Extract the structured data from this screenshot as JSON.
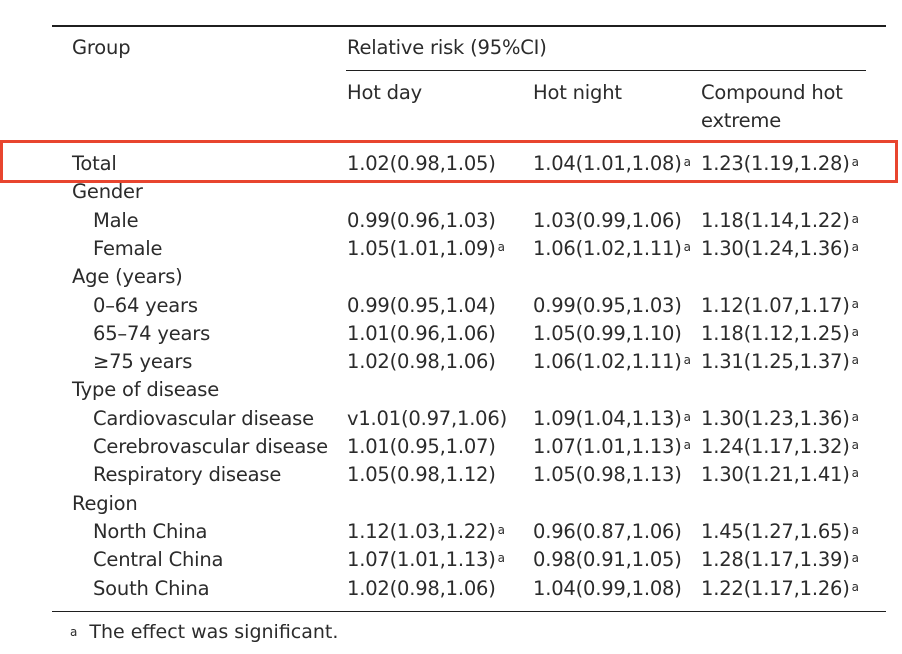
{
  "header": {
    "group": "Group",
    "relative_risk": "Relative risk (95%CI)",
    "columns": [
      "Hot day",
      "Hot night",
      "Compound hot",
      "extreme"
    ]
  },
  "rows": [
    {
      "label": "Total",
      "indent": false,
      "hot_day": "1.02(0.98,1.05)",
      "hot_day_sig": "",
      "hot_night": "1.04(1.01,1.08)",
      "hot_night_sig": "a",
      "compound": "1.23(1.19,1.28)",
      "compound_sig": "a"
    },
    {
      "label": "Gender",
      "indent": false
    },
    {
      "label": "Male",
      "indent": true,
      "hot_day": "0.99(0.96,1.03)",
      "hot_day_sig": "",
      "hot_night": "1.03(0.99,1.06)",
      "hot_night_sig": "",
      "compound": "1.18(1.14,1.22)",
      "compound_sig": "a"
    },
    {
      "label": "Female",
      "indent": true,
      "hot_day": "1.05(1.01,1.09)",
      "hot_day_sig": "a",
      "hot_night": "1.06(1.02,1.11)",
      "hot_night_sig": "a",
      "compound": "1.30(1.24,1.36)",
      "compound_sig": "a"
    },
    {
      "label": "Age (years)",
      "indent": false
    },
    {
      "label": "0–64 years",
      "indent": true,
      "hot_day": "0.99(0.95,1.04)",
      "hot_day_sig": "",
      "hot_night": "0.99(0.95,1.03)",
      "hot_night_sig": "",
      "compound": "1.12(1.07,1.17)",
      "compound_sig": "a"
    },
    {
      "label": "65–74 years",
      "indent": true,
      "hot_day": "1.01(0.96,1.06)",
      "hot_day_sig": "",
      "hot_night": "1.05(0.99,1.10)",
      "hot_night_sig": "",
      "compound": "1.18(1.12,1.25)",
      "compound_sig": "a"
    },
    {
      "label": "≥75 years",
      "indent": true,
      "hot_day": "1.02(0.98,1.06)",
      "hot_day_sig": "",
      "hot_night": "1.06(1.02,1.11)",
      "hot_night_sig": "a",
      "compound": "1.31(1.25,1.37)",
      "compound_sig": "a"
    },
    {
      "label": "Type of disease",
      "indent": false
    },
    {
      "label": "Cardiovascular disease",
      "indent": true,
      "hot_day": "v1.01(0.97,1.06)",
      "hot_day_sig": "",
      "hot_night": "1.09(1.04,1.13)",
      "hot_night_sig": "a",
      "compound": "1.30(1.23,1.36)",
      "compound_sig": "a"
    },
    {
      "label": "Cerebrovascular disease",
      "indent": true,
      "hot_day": "1.01(0.95,1.07)",
      "hot_day_sig": "",
      "hot_night": "1.07(1.01,1.13)",
      "hot_night_sig": "a",
      "compound": "1.24(1.17,1.32)",
      "compound_sig": "a"
    },
    {
      "label": "Respiratory disease",
      "indent": true,
      "hot_day": "1.05(0.98,1.12)",
      "hot_day_sig": "",
      "hot_night": "1.05(0.98,1.13)",
      "hot_night_sig": "",
      "compound": "1.30(1.21,1.41)",
      "compound_sig": "a"
    },
    {
      "label": "Region",
      "indent": false
    },
    {
      "label": "North China",
      "indent": true,
      "hot_day": "1.12(1.03,1.22)",
      "hot_day_sig": "a",
      "hot_night": "0.96(0.87,1.06)",
      "hot_night_sig": "",
      "compound": "1.45(1.27,1.65)",
      "compound_sig": "a"
    },
    {
      "label": "Central China",
      "indent": true,
      "hot_day": "1.07(1.01,1.13)",
      "hot_day_sig": "a",
      "hot_night": "0.98(0.91,1.05)",
      "hot_night_sig": "",
      "compound": "1.28(1.17,1.39)",
      "compound_sig": "a"
    },
    {
      "label": "South China",
      "indent": true,
      "hot_day": "1.02(0.98,1.06)",
      "hot_day_sig": "",
      "hot_night": "1.04(0.99,1.08)",
      "hot_night_sig": "",
      "compound": "1.22(1.17,1.26)",
      "compound_sig": "a"
    }
  ],
  "footnote": {
    "mark": "a",
    "text": "The effect was significant."
  },
  "colors": {
    "highlight": "#e8452f",
    "text": "#2b2b2b",
    "rule": "#1f1f1f"
  }
}
